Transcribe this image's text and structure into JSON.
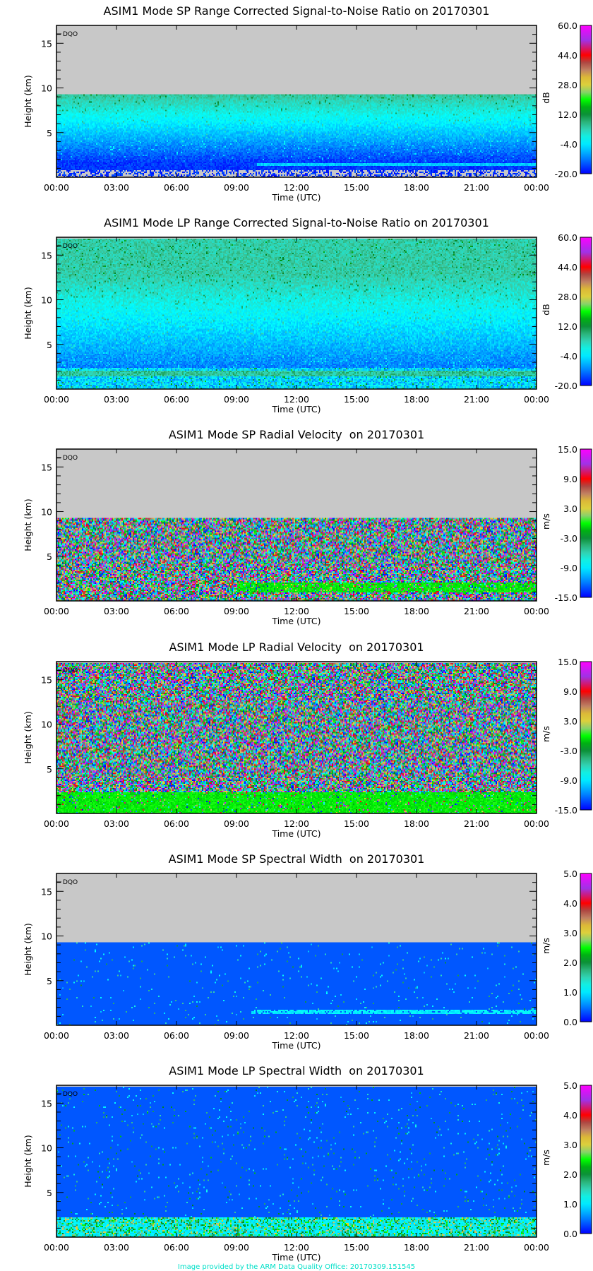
{
  "footer": "Image provided by the ARM Data Quality Office: 20170309.151545",
  "colors": {
    "missing": "#c8c8c8",
    "footer": "#00e0c8"
  },
  "chart_data": [
    {
      "type": "heatmap",
      "title": "ASIM1 Mode SP Range Corrected Signal-to-Noise Ratio on 20170301",
      "xlabel": "Time (UTC)",
      "ylabel": "Height (km)",
      "xticks": [
        "00:00",
        "03:00",
        "06:00",
        "09:00",
        "12:00",
        "15:00",
        "18:00",
        "21:00",
        "00:00"
      ],
      "yticks": [
        5,
        10,
        15
      ],
      "ylim": [
        0,
        17
      ],
      "flag": "DQO",
      "colorbar": {
        "unit": "dB",
        "ticks": [
          "60.0",
          "44.0",
          "28.0",
          "12.0",
          "-4.0",
          "-20.0"
        ],
        "range": [
          -20,
          60
        ]
      },
      "data_top_km": 9.3,
      "kind": "snr_sp"
    },
    {
      "type": "heatmap",
      "title": "ASIM1 Mode LP Range Corrected Signal-to-Noise Ratio on 20170301",
      "xlabel": "Time (UTC)",
      "ylabel": "Height (km)",
      "xticks": [
        "00:00",
        "03:00",
        "06:00",
        "09:00",
        "12:00",
        "15:00",
        "18:00",
        "21:00",
        "00:00"
      ],
      "yticks": [
        5,
        10,
        15
      ],
      "ylim": [
        0,
        17
      ],
      "flag": "DQO",
      "colorbar": {
        "unit": "dB",
        "ticks": [
          "60.0",
          "44.0",
          "28.0",
          "12.0",
          "-4.0",
          "-20.0"
        ],
        "range": [
          -20,
          60
        ]
      },
      "data_top_km": 16.8,
      "kind": "snr_lp"
    },
    {
      "type": "heatmap",
      "title": "ASIM1 Mode SP Radial Velocity  on 20170301",
      "xlabel": "Time (UTC)",
      "ylabel": "Height (km)",
      "xticks": [
        "00:00",
        "03:00",
        "06:00",
        "09:00",
        "12:00",
        "15:00",
        "18:00",
        "21:00",
        "00:00"
      ],
      "yticks": [
        5,
        10,
        15
      ],
      "ylim": [
        0,
        17
      ],
      "flag": "DQO",
      "colorbar": {
        "unit": "m/s",
        "ticks": [
          "15.0",
          "9.0",
          "3.0",
          "-3.0",
          "-9.0",
          "-15.0"
        ],
        "range": [
          -15,
          15
        ]
      },
      "data_top_km": 9.3,
      "kind": "vel_sp"
    },
    {
      "type": "heatmap",
      "title": "ASIM1 Mode LP Radial Velocity  on 20170301",
      "xlabel": "Time (UTC)",
      "ylabel": "Height (km)",
      "xticks": [
        "00:00",
        "03:00",
        "06:00",
        "09:00",
        "12:00",
        "15:00",
        "18:00",
        "21:00",
        "00:00"
      ],
      "yticks": [
        5,
        10,
        15
      ],
      "ylim": [
        0,
        17
      ],
      "flag": "DQO",
      "colorbar": {
        "unit": "m/s",
        "ticks": [
          "15.0",
          "9.0",
          "3.0",
          "-3.0",
          "-9.0",
          "-15.0"
        ],
        "range": [
          -15,
          15
        ]
      },
      "data_top_km": 16.8,
      "kind": "vel_lp"
    },
    {
      "type": "heatmap",
      "title": "ASIM1 Mode SP Spectral Width  on 20170301",
      "xlabel": "Time (UTC)",
      "ylabel": "Height (km)",
      "xticks": [
        "00:00",
        "03:00",
        "06:00",
        "09:00",
        "12:00",
        "15:00",
        "18:00",
        "21:00",
        "00:00"
      ],
      "yticks": [
        5,
        10,
        15
      ],
      "ylim": [
        0,
        17
      ],
      "flag": "DQO",
      "colorbar": {
        "unit": "m/s",
        "ticks": [
          "5.0",
          "4.0",
          "3.0",
          "2.0",
          "1.0",
          "0.0"
        ],
        "range": [
          0,
          5
        ]
      },
      "data_top_km": 9.3,
      "kind": "sw_sp"
    },
    {
      "type": "heatmap",
      "title": "ASIM1 Mode LP Spectral Width  on 20170301",
      "xlabel": "Time (UTC)",
      "ylabel": "Height (km)",
      "xticks": [
        "00:00",
        "03:00",
        "06:00",
        "09:00",
        "12:00",
        "15:00",
        "18:00",
        "21:00",
        "00:00"
      ],
      "yticks": [
        5,
        10,
        15
      ],
      "ylim": [
        0,
        17
      ],
      "flag": "DQO",
      "colorbar": {
        "unit": "m/s",
        "ticks": [
          "5.0",
          "4.0",
          "3.0",
          "2.0",
          "1.0",
          "0.0"
        ],
        "range": [
          0,
          5
        ]
      },
      "data_top_km": 16.8,
      "kind": "sw_lp"
    }
  ]
}
